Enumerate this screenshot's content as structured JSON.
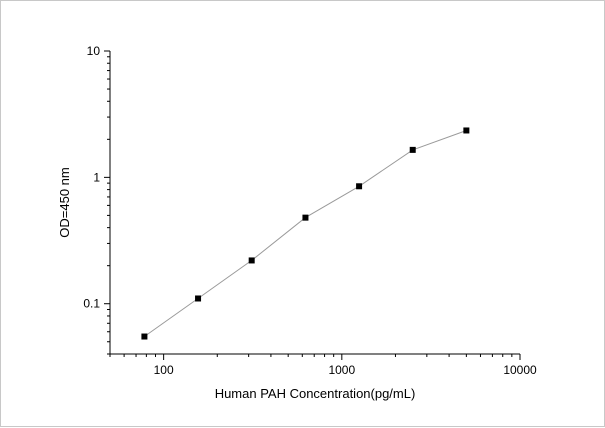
{
  "chart_data": {
    "type": "line",
    "title": "",
    "xlabel": "Human PAH Concentration(pg/mL)",
    "ylabel": "OD=450 nm",
    "x_scale": "log",
    "y_scale": "log",
    "xlim": [
      50,
      10000
    ],
    "ylim": [
      0.04,
      10
    ],
    "x_ticks": [
      100,
      1000,
      10000
    ],
    "x_tick_labels": [
      "100",
      "1000",
      "10000"
    ],
    "y_ticks": [
      0.1,
      1,
      10
    ],
    "y_tick_labels": [
      "0.1",
      "1",
      "10"
    ],
    "grid": false,
    "legend": "none",
    "series": [
      {
        "x": [
          78,
          156,
          312,
          625,
          1250,
          2500,
          5000
        ],
        "y": [
          0.055,
          0.11,
          0.22,
          0.48,
          0.85,
          1.65,
          2.35
        ]
      }
    ],
    "colors": {
      "line": "#9a9a9a",
      "marker": "#000000",
      "axis": "#000000"
    }
  }
}
